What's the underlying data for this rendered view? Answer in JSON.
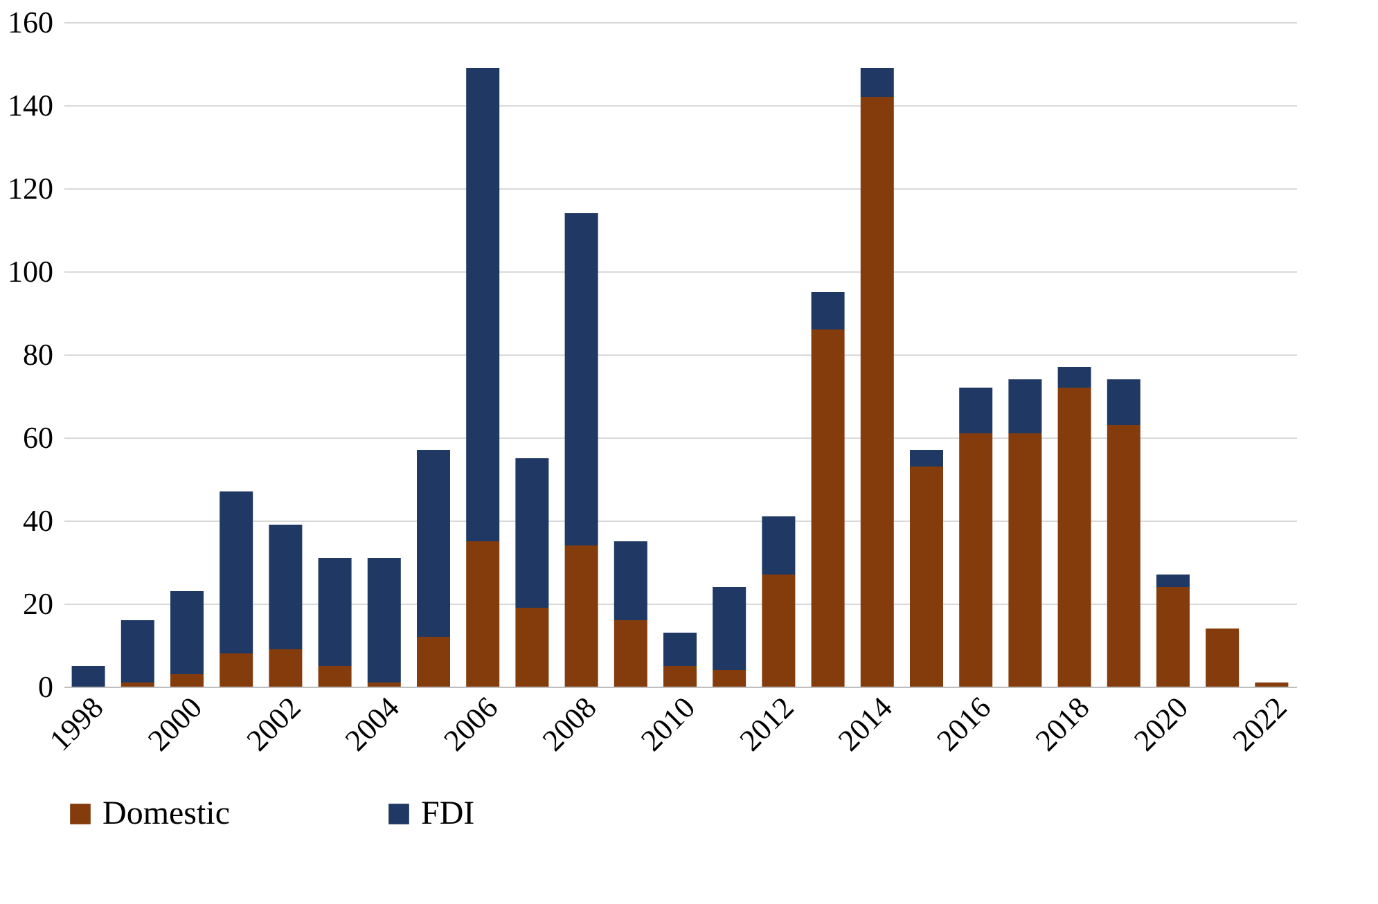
{
  "chart_data": {
    "type": "bar",
    "stacked": true,
    "categories": [
      "1998",
      null,
      "2000",
      null,
      "2002",
      null,
      "2004",
      null,
      "2006",
      null,
      "2008",
      null,
      "2010",
      null,
      "2012",
      null,
      "2014",
      null,
      "2016",
      null,
      "2018",
      null,
      "2020",
      null,
      "2022"
    ],
    "series": [
      {
        "name": "Domestic",
        "color": "#843c0c",
        "values": [
          0,
          1,
          3,
          8,
          9,
          5,
          1,
          12,
          35,
          19,
          34,
          16,
          5,
          4,
          27,
          86,
          142,
          53,
          61,
          61,
          72,
          63,
          24,
          14,
          1
        ]
      },
      {
        "name": "FDI",
        "color": "#1f3864",
        "values": [
          5,
          15,
          20,
          39,
          30,
          26,
          30,
          45,
          114,
          36,
          80,
          19,
          8,
          20,
          14,
          9,
          7,
          4,
          11,
          13,
          5,
          11,
          3,
          0,
          0
        ]
      }
    ],
    "ylim": [
      0,
      160
    ],
    "yticks": [
      0,
      20,
      40,
      60,
      80,
      100,
      120,
      140,
      160
    ],
    "grid": "y",
    "legend": "bottom"
  }
}
